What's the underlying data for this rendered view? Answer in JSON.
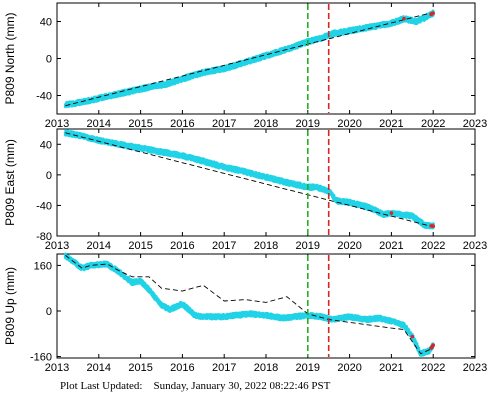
{
  "footer": {
    "label": "Plot Last Updated:",
    "timestamp": "Sunday, January 30, 2022 08:22:46 PST"
  },
  "colors": {
    "data_points": "#22d3e6",
    "trend": "#000000",
    "recent_points": "#d62728",
    "event_green": "#22b022",
    "event_red": "#d62728"
  },
  "chart_data": [
    {
      "type": "scatter",
      "ylabel": "P809 North (mm)",
      "xlim": [
        2013,
        2023
      ],
      "ylim": [
        -60,
        60
      ],
      "xticks": [
        "2013",
        "2014",
        "2015",
        "2016",
        "2017",
        "2018",
        "2019",
        "2020",
        "2021",
        "2022",
        "2023"
      ],
      "yticks": [
        {
          "value": 40,
          "label": "40"
        },
        {
          "value": 0,
          "label": "0"
        },
        {
          "value": -40,
          "label": "-40"
        }
      ],
      "event_lines": [
        {
          "x": 2019.0,
          "color": "green"
        },
        {
          "x": 2019.5,
          "color": "red"
        }
      ],
      "series": [
        {
          "x": [
            2013.2,
            2013.6,
            2014.0,
            2014.5,
            2015.0,
            2015.3,
            2015.6,
            2016.0,
            2016.5,
            2017.0,
            2017.5,
            2018.0,
            2018.5,
            2019.0,
            2019.3,
            2019.6,
            2020.0,
            2020.5,
            2021.0,
            2021.3,
            2021.6,
            2021.8,
            2022.0
          ],
          "y": [
            -50,
            -47,
            -43,
            -38,
            -33,
            -30,
            -28,
            -22,
            -15,
            -11,
            -4,
            3,
            10,
            18,
            22,
            27,
            30,
            34,
            38,
            43,
            40,
            44,
            49
          ]
        },
        {
          "x": [
            2013.2,
            2022.0
          ],
          "y": [
            -51,
            50
          ]
        }
      ]
    },
    {
      "type": "scatter",
      "ylabel": "P809 East (mm)",
      "xlim": [
        2013,
        2023
      ],
      "ylim": [
        -80,
        60
      ],
      "xticks": [
        "2013",
        "2014",
        "2015",
        "2016",
        "2017",
        "2018",
        "2019",
        "2020",
        "2021",
        "2022",
        "2023"
      ],
      "yticks": [
        {
          "value": 40,
          "label": "40"
        },
        {
          "value": 0,
          "label": "0"
        },
        {
          "value": -40,
          "label": "-40"
        },
        {
          "value": -80,
          "label": "-80"
        }
      ],
      "event_lines": [
        {
          "x": 2019.0,
          "color": "green"
        },
        {
          "x": 2019.5,
          "color": "red"
        }
      ],
      "series": [
        {
          "x": [
            2013.2,
            2013.5,
            2014.0,
            2014.5,
            2015.0,
            2015.5,
            2016.0,
            2016.5,
            2017.0,
            2017.5,
            2018.0,
            2018.5,
            2019.0,
            2019.2,
            2019.5,
            2019.7,
            2020.0,
            2020.5,
            2020.8,
            2021.0,
            2021.5,
            2021.8,
            2022.0
          ],
          "y": [
            55,
            52,
            45,
            40,
            35,
            30,
            25,
            18,
            10,
            4,
            -3,
            -10,
            -16,
            -16,
            -21,
            -34,
            -36,
            -43,
            -52,
            -50,
            -54,
            -66,
            -67
          ]
        },
        {
          "x": [
            2013.2,
            2022.0
          ],
          "y": [
            55,
            -68
          ]
        }
      ]
    },
    {
      "type": "scatter",
      "ylabel": "P809 Up (mm)",
      "xlim": [
        2013,
        2023
      ],
      "ylim": [
        -165,
        200
      ],
      "xticks": [
        "2013",
        "2014",
        "2015",
        "2016",
        "2017",
        "2018",
        "2019",
        "2020",
        "2021",
        "2022",
        "2023"
      ],
      "yticks": [
        {
          "value": 160,
          "label": "160"
        },
        {
          "value": 0,
          "label": "0"
        },
        {
          "value": -160,
          "label": "-160"
        }
      ],
      "event_lines": [
        {
          "x": 2019.0,
          "color": "green"
        },
        {
          "x": 2019.5,
          "color": "red"
        }
      ],
      "series": [
        {
          "x": [
            2013.2,
            2013.6,
            2013.8,
            2014.2,
            2014.5,
            2014.8,
            2015.0,
            2015.2,
            2015.5,
            2015.7,
            2016.0,
            2016.3,
            2016.5,
            2017.0,
            2017.3,
            2017.6,
            2018.0,
            2018.4,
            2018.7,
            2019.0,
            2019.3,
            2019.6,
            2020.0,
            2020.4,
            2020.7,
            2021.0,
            2021.3,
            2021.5,
            2021.7,
            2021.9,
            2022.0
          ],
          "y": [
            195,
            150,
            160,
            165,
            135,
            100,
            105,
            75,
            20,
            5,
            25,
            -15,
            -20,
            -20,
            -15,
            -10,
            -15,
            -25,
            -20,
            -15,
            -20,
            -30,
            -20,
            -30,
            -25,
            -35,
            -50,
            -90,
            -150,
            -140,
            -120
          ]
        },
        {
          "x": [
            2013.2,
            2013.6,
            2013.8,
            2014.2,
            2014.5,
            2014.8,
            2015.2,
            2015.5,
            2016.0,
            2016.5,
            2017.0,
            2017.5,
            2018.0,
            2018.5,
            2019.0,
            2019.5,
            2020.0,
            2020.5,
            2021.0,
            2021.3,
            2021.7,
            2022.0
          ],
          "y": [
            195,
            150,
            160,
            165,
            140,
            120,
            120,
            80,
            70,
            90,
            35,
            40,
            30,
            50,
            -10,
            -30,
            -40,
            -50,
            -60,
            -65,
            -150,
            -130
          ]
        }
      ]
    }
  ]
}
